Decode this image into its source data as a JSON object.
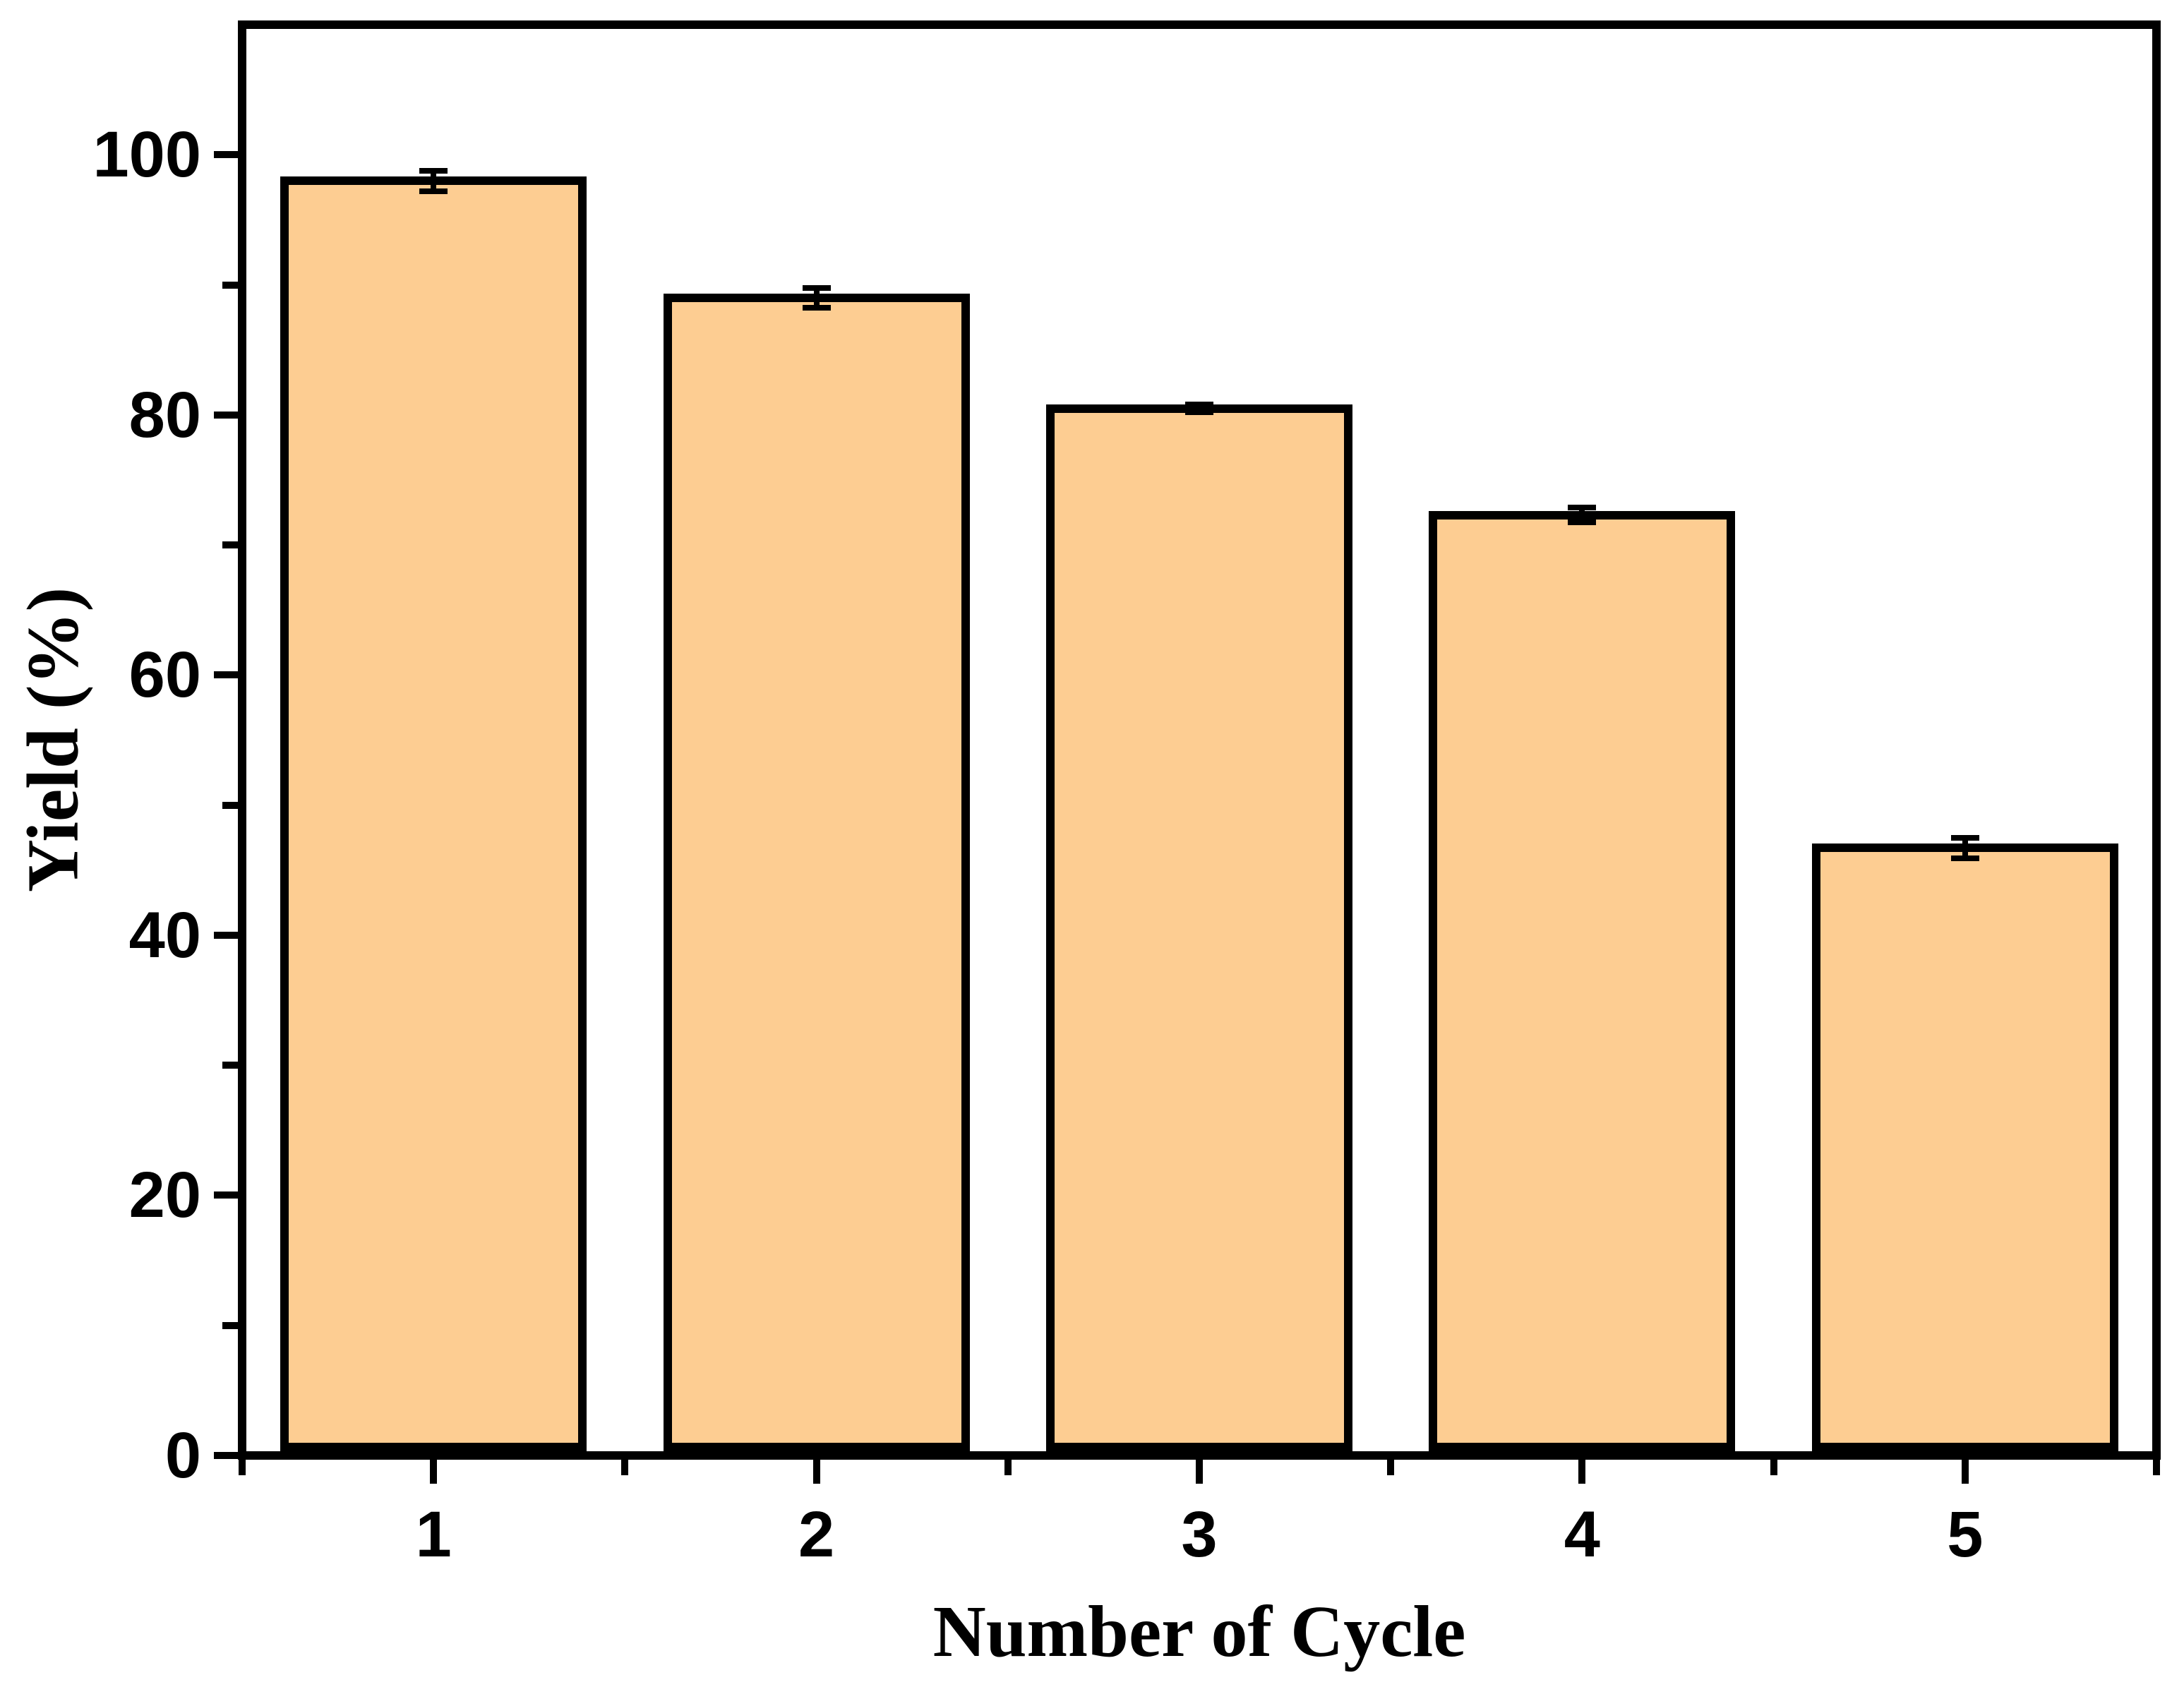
{
  "figure": {
    "background": "#FFFFFF"
  },
  "chart_data": {
    "type": "bar",
    "title": "",
    "xlabel": "Number of Cycle",
    "ylabel": "Yield (%)",
    "categories": [
      "1",
      "2",
      "3",
      "4",
      "5"
    ],
    "values": [
      98.0,
      89.0,
      80.5,
      72.3,
      46.7
    ],
    "error_bars": [
      1.0,
      1.0,
      0.5,
      0.8,
      1.0
    ],
    "ylim": [
      0,
      110
    ],
    "yticks_major": [
      0,
      20,
      40,
      60,
      80,
      100
    ],
    "yticks_minor": [
      10,
      30,
      50,
      70,
      90
    ],
    "bar_fill_color": "#FDCD92",
    "bar_edge_color": "#000000",
    "axis_color": "#000000",
    "grid": false,
    "legend": false
  }
}
